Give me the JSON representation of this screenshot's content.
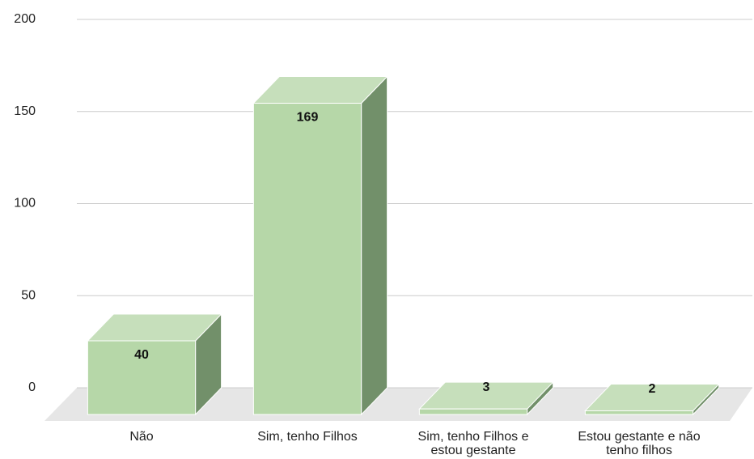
{
  "chart_data": {
    "type": "bar3d",
    "categories": [
      "Não",
      "Sim, tenho Filhos",
      "Sim, tenho Filhos e estou gestante",
      "Estou gestante e não tenho filhos"
    ],
    "values": [
      40,
      169,
      3,
      2
    ],
    "color": "#b6d7a8",
    "top_color": "#c6dfbb",
    "side_color": "#72906a",
    "ylim": [
      0,
      200
    ],
    "yticks": [
      0,
      50,
      100,
      150,
      200
    ],
    "grid": true
  }
}
